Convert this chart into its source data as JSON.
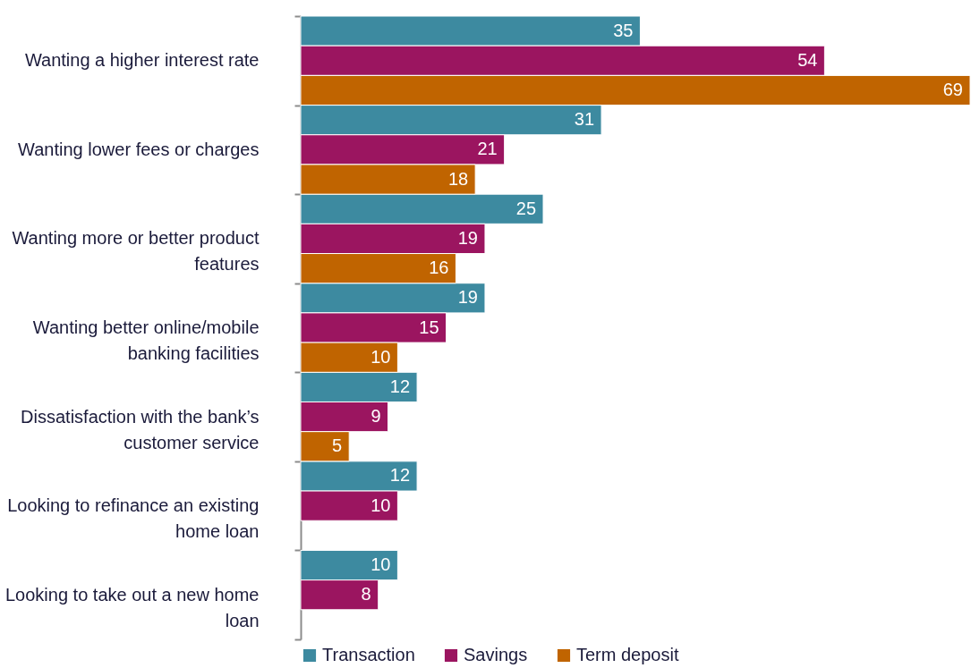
{
  "chart_data": {
    "type": "bar",
    "orientation": "horizontal",
    "categories": [
      "Wanting a higher interest rate",
      "Wanting lower fees or charges",
      "Wanting more or better product features",
      "Wanting better online/mobile banking facilities",
      "Dissatisfaction with the bank’s customer service",
      "Looking to refinance an existing home loan",
      "Looking to take out a new home loan"
    ],
    "series": [
      {
        "name": "Transaction",
        "color": "#3d8aa0",
        "values": [
          35,
          31,
          25,
          19,
          12,
          12,
          10
        ]
      },
      {
        "name": "Savings",
        "color": "#9b1560",
        "values": [
          54,
          21,
          19,
          15,
          9,
          10,
          8
        ]
      },
      {
        "name": "Term deposit",
        "color": "#c06400",
        "values": [
          69,
          18,
          16,
          10,
          5,
          null,
          null
        ]
      }
    ],
    "data_labels": true,
    "legend": "bottom"
  }
}
